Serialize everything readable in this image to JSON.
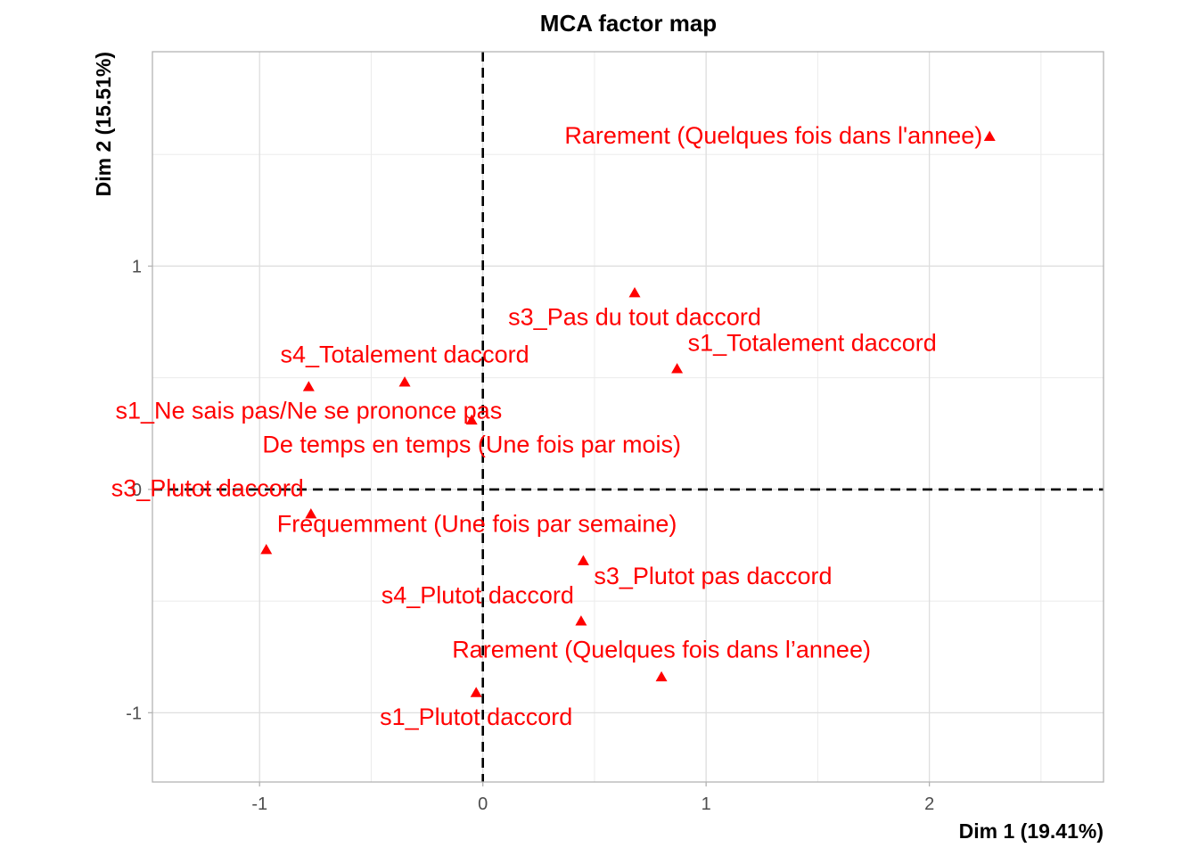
{
  "chart_data": {
    "type": "scatter",
    "title": "MCA factor map",
    "xlabel": "Dim 1 (19.41%)",
    "ylabel": "Dim 2 (15.51%)",
    "xlim": [
      -1.48,
      2.78
    ],
    "ylim": [
      -1.31,
      1.96
    ],
    "xticks": [
      -1,
      0,
      1,
      2
    ],
    "yticks": [
      -1,
      0,
      1
    ],
    "xtick_labels": [
      "-1",
      "0",
      "1",
      "2"
    ],
    "ytick_labels": [
      "-1",
      "0",
      "1"
    ],
    "grid": true,
    "reference_lines": {
      "x": 0,
      "y": 0,
      "style": "dashed"
    },
    "point_color": "#ff0000",
    "marker": "triangle",
    "points": [
      {
        "label": "Rarement (Quelques fois dans l'annee)",
        "x": 2.27,
        "y": 1.58,
        "label_pos": "left"
      },
      {
        "label": "s3_Pas du tout daccord",
        "x": 0.68,
        "y": 0.88,
        "label_pos": "below"
      },
      {
        "label": "s1_Totalement daccord",
        "x": 0.87,
        "y": 0.54,
        "label_pos": "above-right"
      },
      {
        "label": "s4_Totalement daccord",
        "x": -0.35,
        "y": 0.48,
        "label_pos": "above"
      },
      {
        "label": "s1_Ne sais pas/Ne se prononce pas",
        "x": -0.78,
        "y": 0.46,
        "label_pos": "below"
      },
      {
        "label": "De temps en temps (Une fois par mois)",
        "x": -0.05,
        "y": 0.31,
        "label_pos": "below"
      },
      {
        "label": "s3_Plutot daccord",
        "x": -0.77,
        "y": -0.11,
        "label_pos": "above-left"
      },
      {
        "label": "Frequemment (Une fois par semaine)",
        "x": -0.97,
        "y": -0.27,
        "label_pos": "above-right"
      },
      {
        "label": "s3_Plutot pas daccord",
        "x": 0.45,
        "y": -0.32,
        "label_pos": "below-right"
      },
      {
        "label": "s4_Plutot daccord",
        "x": 0.44,
        "y": -0.59,
        "label_pos": "above-left"
      },
      {
        "label": "Rarement (Quelques fois dans l’annee)",
        "x": 0.8,
        "y": -0.84,
        "label_pos": "above"
      },
      {
        "label": "s1_Plutot daccord",
        "x": -0.03,
        "y": -0.91,
        "label_pos": "below"
      }
    ]
  }
}
